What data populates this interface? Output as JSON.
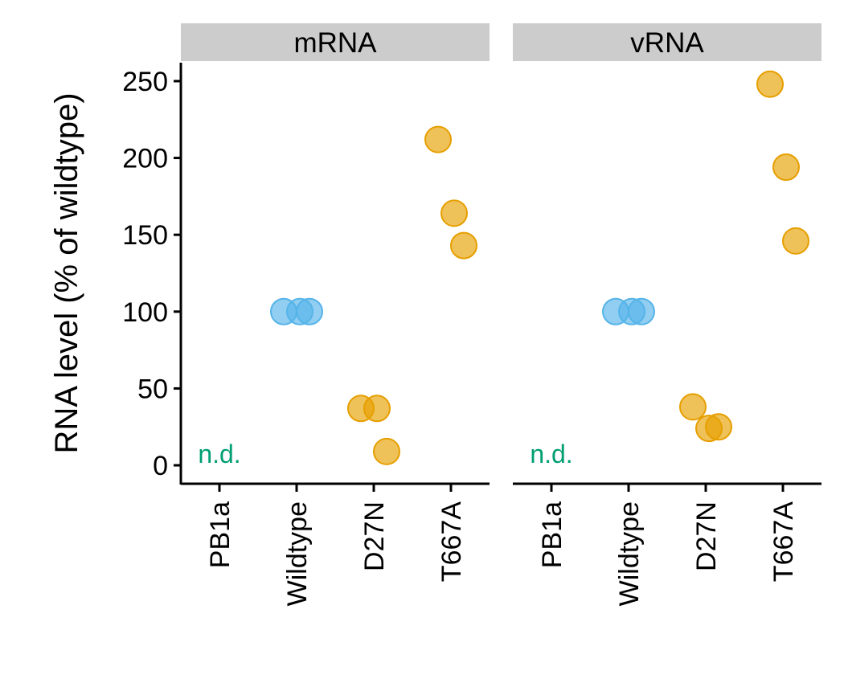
{
  "chart_data": {
    "type": "scatter",
    "ylabel": "RNA level (% of wildtype)",
    "ylim": [
      -12,
      262
    ],
    "yticks": [
      0,
      50,
      100,
      150,
      200,
      250
    ],
    "categories": [
      "PB1a",
      "Wildtype",
      "D27N",
      "T667A"
    ],
    "colors": {
      "Wildtype": "#56B4E9",
      "mutant": "#E69F00",
      "nd": "#009E73",
      "strip": "#CCCCCC",
      "axis": "#000000"
    },
    "panels": [
      {
        "name": "mRNA",
        "nd_label": "n.d.",
        "points": [
          {
            "category": "Wildtype",
            "values": [
              100,
              100,
              100
            ]
          },
          {
            "category": "D27N",
            "values": [
              37,
              37,
              9
            ]
          },
          {
            "category": "T667A",
            "values": [
              212,
              164,
              143
            ]
          }
        ]
      },
      {
        "name": "vRNA",
        "nd_label": "n.d.",
        "points": [
          {
            "category": "Wildtype",
            "values": [
              100,
              100,
              100
            ]
          },
          {
            "category": "D27N",
            "values": [
              38,
              24,
              25
            ]
          },
          {
            "category": "T667A",
            "values": [
              248,
              194,
              146
            ]
          }
        ]
      }
    ]
  }
}
